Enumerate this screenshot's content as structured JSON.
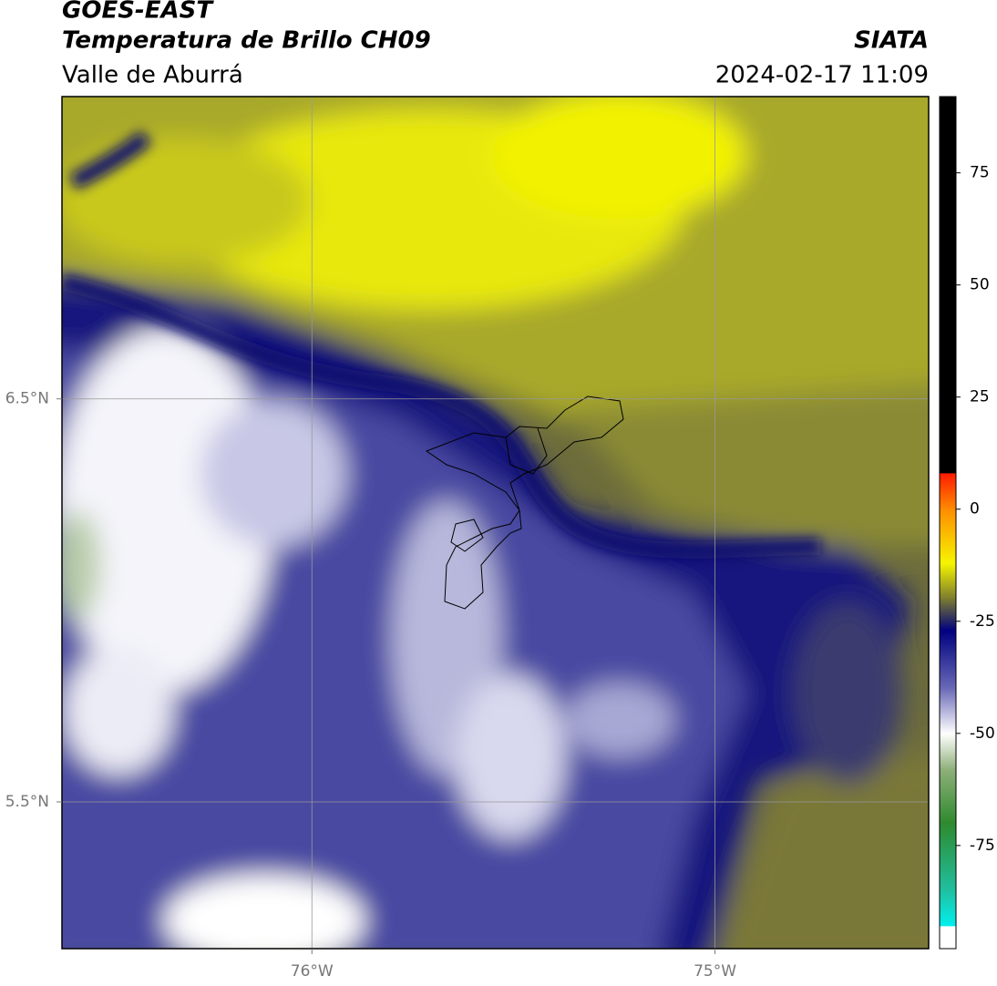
{
  "chart_data": {
    "type": "map",
    "title": "GOES-EAST",
    "subtitle": "Temperatura de Brillo CH09",
    "region": "Valle de Aburrá",
    "source": "SIATA",
    "datetime": "2024-02-17 11:09",
    "xlim": [
      -76.62,
      -74.47
    ],
    "ylim": [
      5.136,
      7.25
    ],
    "xticks": [
      {
        "value": -76,
        "label": "76°W"
      },
      {
        "value": -75,
        "label": "75°W"
      }
    ],
    "yticks": [
      {
        "value": 5.5,
        "label": "5.5°N"
      },
      {
        "value": 6.5,
        "label": "6.5°N"
      }
    ],
    "grid": true,
    "colorbar": {
      "lim": [
        -98,
        92
      ],
      "ticks": [
        -75,
        -50,
        -25,
        0,
        25,
        50,
        75
      ],
      "stops": [
        {
          "value": 92,
          "color": "#000000"
        },
        {
          "value": 8,
          "color": "#000000"
        },
        {
          "value": 8,
          "color": "#ff1a00"
        },
        {
          "value": 0,
          "color": "#ff8c00"
        },
        {
          "value": -12,
          "color": "#f5f500"
        },
        {
          "value": -20,
          "color": "#7a7a30"
        },
        {
          "value": -27,
          "color": "#000080"
        },
        {
          "value": -40,
          "color": "#6a6ab8"
        },
        {
          "value": -50,
          "color": "#ffffff"
        },
        {
          "value": -58,
          "color": "#8fb07a"
        },
        {
          "value": -70,
          "color": "#2e8a2e"
        },
        {
          "value": -85,
          "color": "#20c0a0"
        },
        {
          "value": -93,
          "color": "#00f0f0"
        },
        {
          "value": -93,
          "color": "#ffffff"
        },
        {
          "value": -98,
          "color": "#ffffff"
        }
      ]
    }
  }
}
